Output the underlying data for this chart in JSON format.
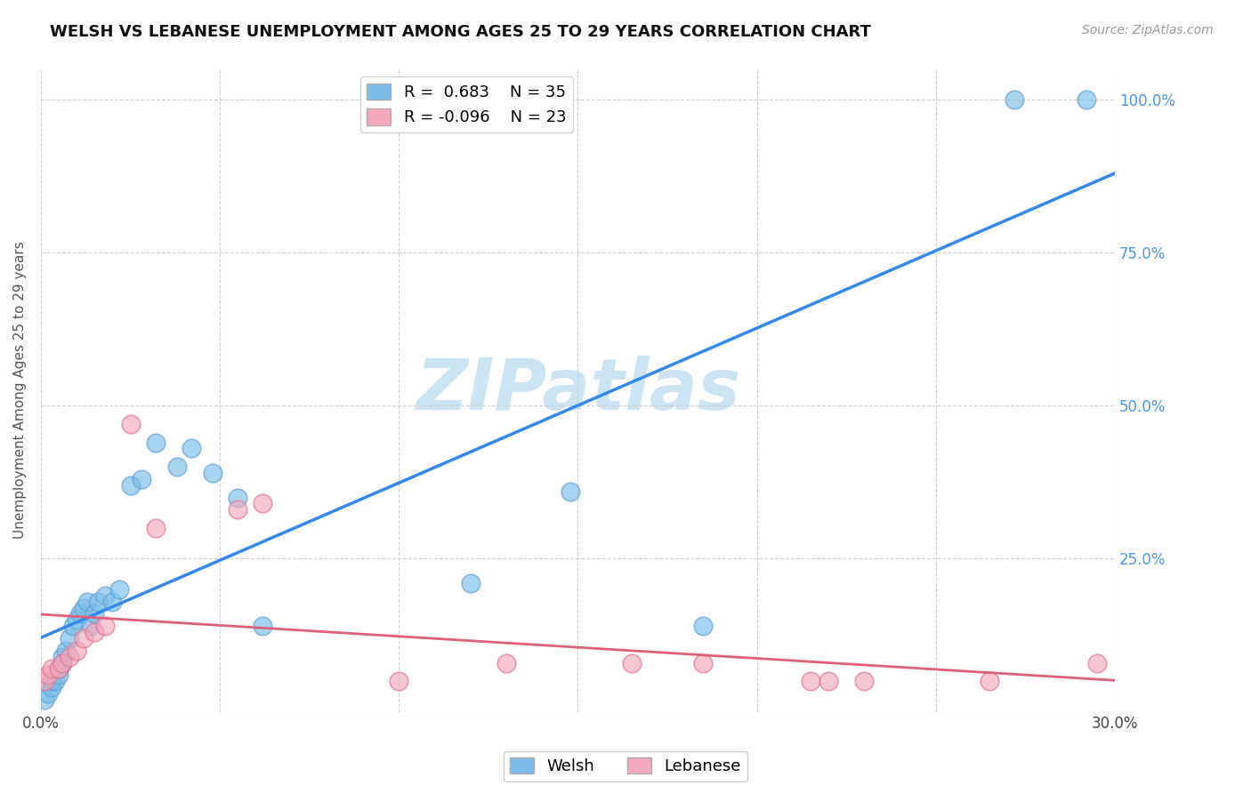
{
  "title": "WELSH VS LEBANESE UNEMPLOYMENT AMONG AGES 25 TO 29 YEARS CORRELATION CHART",
  "source": "Source: ZipAtlas.com",
  "ylabel": "Unemployment Among Ages 25 to 29 years",
  "xlim": [
    0.0,
    0.3
  ],
  "ylim": [
    0.0,
    1.05
  ],
  "xticks": [
    0.0,
    0.05,
    0.1,
    0.15,
    0.2,
    0.25,
    0.3
  ],
  "xtick_labels": [
    "0.0%",
    "",
    "",
    "",
    "",
    "",
    "30.0%"
  ],
  "yticks": [
    0.0,
    0.25,
    0.5,
    0.75,
    1.0
  ],
  "ytick_labels_right": [
    "",
    "25.0%",
    "50.0%",
    "75.0%",
    "100.0%"
  ],
  "welsh_color": "#7bbde8",
  "welsh_edge_color": "#5a9fd4",
  "lebanese_color": "#f4a8bc",
  "lebanese_edge_color": "#e07090",
  "welsh_line_color": "#3388ee",
  "lebanese_line_color": "#e0607a",
  "welsh_R": 0.683,
  "welsh_N": 35,
  "lebanese_R": -0.096,
  "lebanese_N": 23,
  "welsh_x": [
    0.001,
    0.002,
    0.003,
    0.003,
    0.004,
    0.005,
    0.005,
    0.006,
    0.006,
    0.007,
    0.008,
    0.009,
    0.01,
    0.011,
    0.012,
    0.013,
    0.014,
    0.015,
    0.016,
    0.018,
    0.02,
    0.022,
    0.025,
    0.028,
    0.032,
    0.038,
    0.042,
    0.048,
    0.055,
    0.062,
    0.12,
    0.148,
    0.185,
    0.272,
    0.292
  ],
  "welsh_y": [
    0.02,
    0.03,
    0.04,
    0.05,
    0.05,
    0.06,
    0.07,
    0.08,
    0.09,
    0.1,
    0.12,
    0.14,
    0.15,
    0.16,
    0.17,
    0.18,
    0.14,
    0.16,
    0.18,
    0.19,
    0.18,
    0.2,
    0.37,
    0.38,
    0.44,
    0.4,
    0.43,
    0.39,
    0.35,
    0.14,
    0.21,
    0.36,
    0.14,
    1.0,
    1.0
  ],
  "lebanese_x": [
    0.001,
    0.002,
    0.003,
    0.005,
    0.006,
    0.008,
    0.01,
    0.012,
    0.015,
    0.018,
    0.025,
    0.032,
    0.055,
    0.062,
    0.1,
    0.13,
    0.165,
    0.185,
    0.215,
    0.22,
    0.23,
    0.265,
    0.295
  ],
  "lebanese_y": [
    0.05,
    0.06,
    0.07,
    0.07,
    0.08,
    0.09,
    0.1,
    0.12,
    0.13,
    0.14,
    0.47,
    0.3,
    0.33,
    0.34,
    0.05,
    0.08,
    0.08,
    0.08,
    0.05,
    0.05,
    0.05,
    0.05,
    0.08
  ],
  "background_color": "#ffffff",
  "grid_color": "#cccccc",
  "watermark_text": "ZIPatlas",
  "watermark_color": "#cce5f5",
  "watermark_fontsize": 58,
  "title_fontsize": 13,
  "axis_label_fontsize": 11,
  "tick_fontsize": 12,
  "legend_fontsize": 13,
  "source_fontsize": 10
}
